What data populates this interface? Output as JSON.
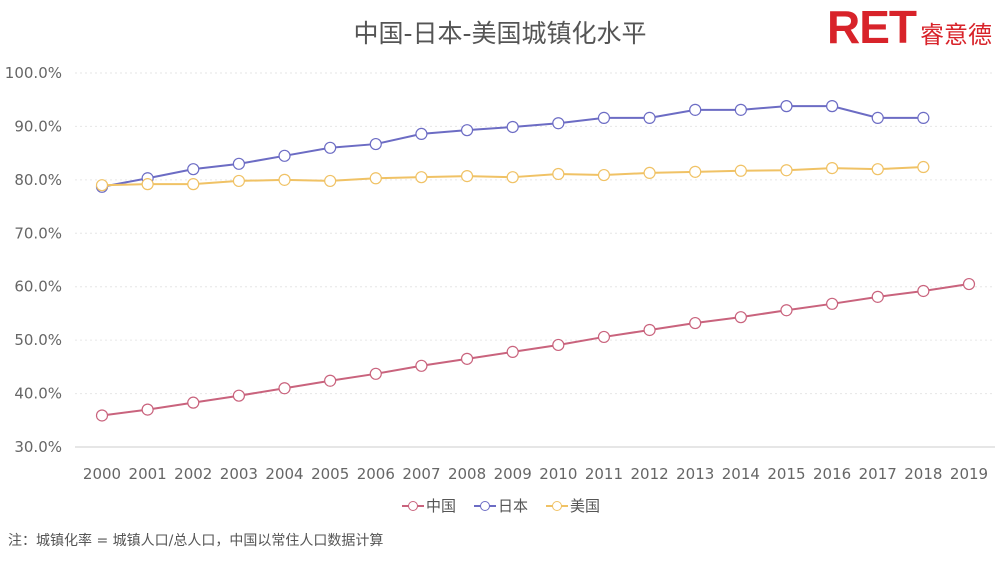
{
  "chart_data": {
    "type": "line",
    "title": "中国-日本-美国城镇化水平",
    "xlabel": "",
    "ylabel": "",
    "categories": [
      "2000",
      "2001",
      "2002",
      "2003",
      "2004",
      "2005",
      "2006",
      "2007",
      "2008",
      "2009",
      "2010",
      "2011",
      "2012",
      "2013",
      "2014",
      "2015",
      "2016",
      "2017",
      "2018",
      "2019"
    ],
    "ylim": [
      30,
      100
    ],
    "yticks": [
      "30.0%",
      "40.0%",
      "50.0%",
      "60.0%",
      "70.0%",
      "80.0%",
      "90.0%",
      "100.0%"
    ],
    "grid": true,
    "legend_position": "bottom",
    "series": [
      {
        "name": "中国",
        "color": "#c9637d",
        "values": [
          35.9,
          37.0,
          38.3,
          39.6,
          41.0,
          42.4,
          43.7,
          45.2,
          46.5,
          47.8,
          49.1,
          50.6,
          51.9,
          53.2,
          54.3,
          55.6,
          56.8,
          58.1,
          59.2,
          60.5
        ]
      },
      {
        "name": "日本",
        "color": "#6c6cc4",
        "values": [
          78.7,
          80.3,
          82.0,
          83.0,
          84.5,
          86.0,
          86.7,
          88.6,
          89.3,
          89.9,
          90.6,
          91.6,
          91.6,
          93.1,
          93.1,
          93.8,
          93.8,
          91.6,
          91.6,
          null
        ]
      },
      {
        "name": "美国",
        "color": "#f0c265",
        "values": [
          79.0,
          79.2,
          79.2,
          79.8,
          80.0,
          79.8,
          80.3,
          80.5,
          80.7,
          80.5,
          81.1,
          80.9,
          81.3,
          81.5,
          81.7,
          81.8,
          82.2,
          82.0,
          82.4,
          null
        ]
      }
    ]
  },
  "logo": {
    "text": "RET",
    "cn": "睿意德"
  },
  "note": "注：城镇化率 = 城镇人口/总人口，中国以常住人口数据计算"
}
